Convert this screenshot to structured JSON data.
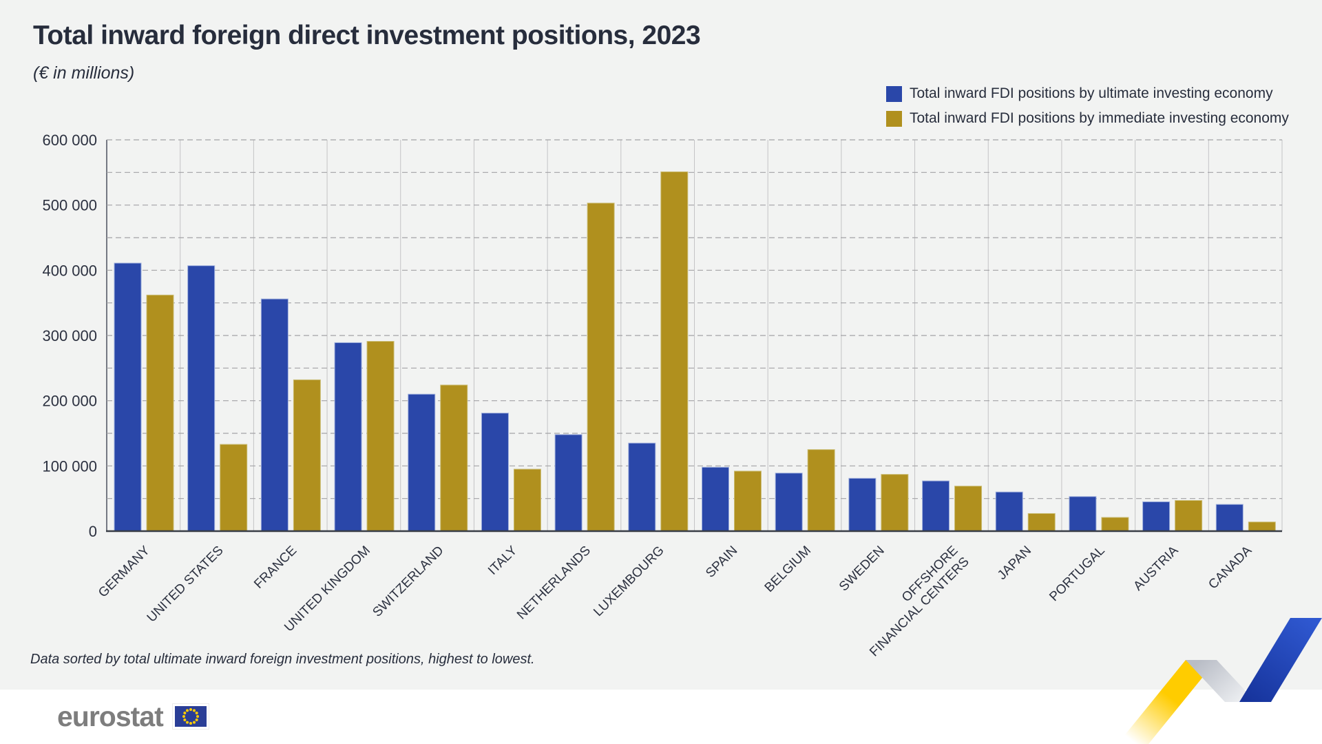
{
  "page": {
    "title": "Total inward foreign direct investment positions, 2023",
    "subtitle": "(€ in millions)",
    "footnote": "Data sorted by total ultimate inward foreign investment positions, highest to lowest."
  },
  "brand": {
    "wordmark": "eurostat"
  },
  "legend": [
    {
      "label": "Total inward FDI positions by ultimate investing economy",
      "color": "#2a47a9"
    },
    {
      "label": "Total inward FDI positions by immediate investing economy",
      "color": "#b0901e"
    }
  ],
  "colors": {
    "background": "#f2f3f2",
    "footer_background": "#ffffff",
    "text": "#2c3140",
    "bar_blue": "#2a47a9",
    "bar_gold": "#b0901e",
    "eu_flag_blue": "#2a3e96",
    "star_yellow": "#ffcc00",
    "ribbon_yellow": "#ffcc00",
    "ribbon_blue": "#2148c0",
    "ribbon_gray": "#c9ccd3"
  },
  "chart_data": {
    "type": "bar",
    "title": "Total inward foreign direct investment positions, 2023",
    "xlabel": "",
    "ylabel": "€ in millions",
    "ylim": [
      0,
      600000
    ],
    "ytick_step": 100000,
    "minor_gridline_step": 50000,
    "grid": true,
    "legend_position": "top-right",
    "ytick_labels": [
      "0",
      "100 000",
      "200 000",
      "300 000",
      "400 000",
      "500 000",
      "600 000"
    ],
    "categories": [
      "GERMANY",
      "UNITED STATES",
      "FRANCE",
      "UNITED KINGDOM",
      "SWITZERLAND",
      "ITALY",
      "NETHERLANDS",
      "LUXEMBOURG",
      "SPAIN",
      "BELGIUM",
      "SWEDEN",
      "OFFSHORE\nFINANCIAL CENTERS",
      "JAPAN",
      "PORTUGAL",
      "AUSTRIA",
      "CANADA"
    ],
    "series": [
      {
        "name": "Total inward FDI positions by ultimate investing economy",
        "color": "#2a47a9",
        "edge": "#9fb0dd",
        "values": [
          411000,
          407000,
          356000,
          289000,
          210000,
          181000,
          148000,
          135000,
          98000,
          89000,
          81000,
          77000,
          60000,
          53000,
          45000,
          41000
        ]
      },
      {
        "name": "Total inward FDI positions by immediate investing economy",
        "color": "#b0901e",
        "edge": "#cabc72",
        "values": [
          362000,
          133000,
          232000,
          291000,
          224000,
          95000,
          503000,
          551000,
          92000,
          125000,
          87000,
          69000,
          27000,
          21000,
          47000,
          14000
        ]
      }
    ]
  }
}
